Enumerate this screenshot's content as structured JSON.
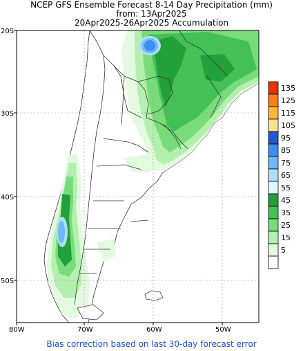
{
  "title": {
    "line1": "NCEP GFS Ensemble Forecast 8-14 Day Precipitation (mm)",
    "line2": "from: 13Apr2025",
    "line3": "20Apr2025-26Apr2025 Accumulation"
  },
  "map": {
    "lat_labels": [
      "20S",
      "30S",
      "40S",
      "50S"
    ],
    "lon_labels": [
      "80W",
      "70W",
      "60W",
      "50W"
    ]
  },
  "legend": {
    "levels": [
      {
        "label": "135",
        "color": "#e8320c"
      },
      {
        "label": "125",
        "color": "#fb7d13"
      },
      {
        "label": "115",
        "color": "#fdb63a"
      },
      {
        "label": "105",
        "color": "#fde28a"
      },
      {
        "label": "95",
        "color": "#1f5bd0"
      },
      {
        "label": "85",
        "color": "#3b8ff0"
      },
      {
        "label": "75",
        "color": "#6dbaf7"
      },
      {
        "label": "65",
        "color": "#aedff9"
      },
      {
        "label": "55",
        "color": "#e2f7fb"
      },
      {
        "label": "45",
        "color": "#22a03a"
      },
      {
        "label": "35",
        "color": "#44c156"
      },
      {
        "label": "25",
        "color": "#78dc7b"
      },
      {
        "label": "15",
        "color": "#b3efae"
      },
      {
        "label": "5",
        "color": "#e4fae0"
      },
      {
        "label": "",
        "color": "#ffffff"
      }
    ]
  },
  "footer": "Bias correction based on last 30-day forecast error"
}
